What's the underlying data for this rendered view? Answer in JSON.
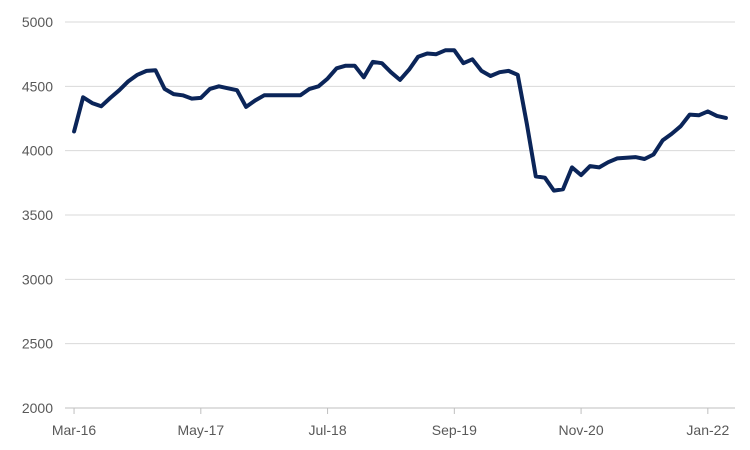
{
  "chart_data": {
    "type": "line",
    "title": "",
    "xlabel": "",
    "ylabel": "",
    "ylim": [
      2000,
      5000
    ],
    "yticks": [
      2000,
      2500,
      3000,
      3500,
      4000,
      4500,
      5000
    ],
    "xtick_labels": [
      "Mar-16",
      "May-17",
      "Jul-18",
      "Sep-19",
      "Nov-20",
      "Jan-22"
    ],
    "xtick_dates": [
      "2016-03",
      "2017-05",
      "2018-07",
      "2019-09",
      "2020-11",
      "2022-01"
    ],
    "grid": "horizontal",
    "line_color": "#0b2559",
    "series": [
      {
        "x": [
          "2016-03",
          "2016-04",
          "2016-05",
          "2016-06",
          "2016-07",
          "2016-08",
          "2016-09",
          "2016-10",
          "2016-11",
          "2016-12",
          "2017-01",
          "2017-02",
          "2017-03",
          "2017-04",
          "2017-05",
          "2017-06",
          "2017-07",
          "2017-08",
          "2017-09",
          "2017-10",
          "2017-11",
          "2017-12",
          "2018-01",
          "2018-02",
          "2018-03",
          "2018-04",
          "2018-05",
          "2018-06",
          "2018-07",
          "2018-08",
          "2018-09",
          "2018-10",
          "2018-11",
          "2018-12",
          "2019-01",
          "2019-02",
          "2019-03",
          "2019-04",
          "2019-05",
          "2019-06",
          "2019-07",
          "2019-08",
          "2019-09",
          "2019-10",
          "2019-11",
          "2019-12",
          "2020-01",
          "2020-02",
          "2020-03",
          "2020-04",
          "2020-05",
          "2020-06",
          "2020-07",
          "2020-08",
          "2020-09",
          "2020-10",
          "2020-11",
          "2020-12",
          "2021-01",
          "2021-02",
          "2021-03",
          "2021-04",
          "2021-05",
          "2021-06",
          "2021-07",
          "2021-08",
          "2021-09",
          "2021-10",
          "2021-11",
          "2021-12",
          "2022-01",
          "2022-02",
          "2022-03"
        ],
        "values": [
          4150,
          4415,
          4370,
          4345,
          4410,
          4470,
          4540,
          4590,
          4620,
          4625,
          4480,
          4440,
          4430,
          4405,
          4410,
          4480,
          4500,
          4485,
          4470,
          4340,
          4390,
          4430,
          4430,
          4430,
          4430,
          4430,
          4480,
          4500,
          4560,
          4640,
          4660,
          4660,
          4570,
          4690,
          4680,
          4610,
          4550,
          4630,
          4730,
          4755,
          4750,
          4780,
          4780,
          4680,
          4710,
          4620,
          4580,
          4610,
          4620,
          4590,
          4210,
          3800,
          3790,
          3690,
          3700,
          3870,
          3810,
          3880,
          3870,
          3910,
          3940,
          3945,
          3950,
          3935,
          3970,
          4080,
          4130,
          4190,
          4280,
          4275,
          4305,
          4270,
          4255
        ]
      }
    ]
  }
}
